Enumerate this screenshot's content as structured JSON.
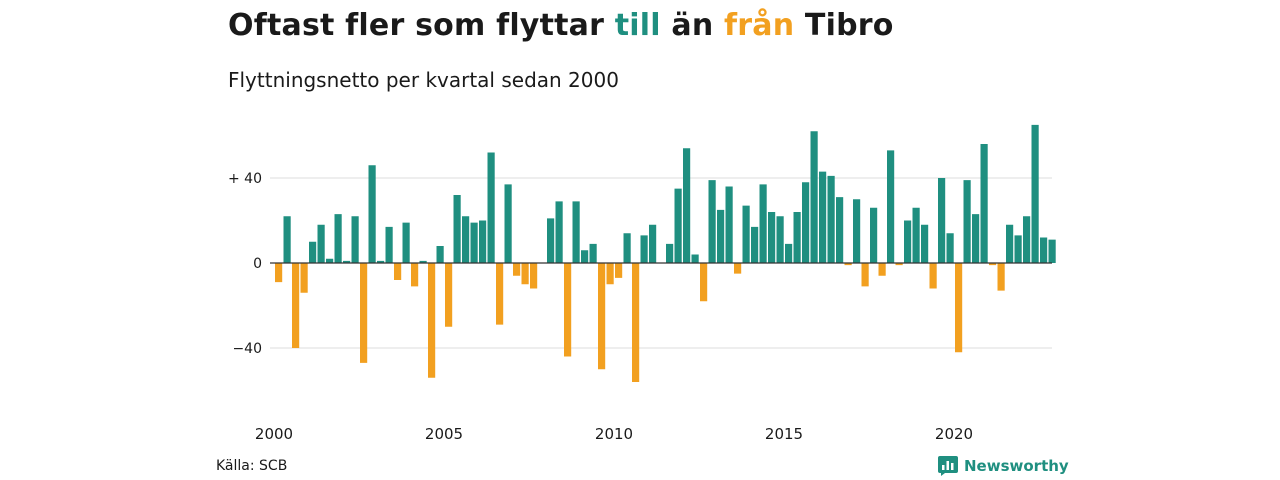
{
  "title": {
    "part1": "Oftast fler som flyttar ",
    "till": "till",
    "part2": " än ",
    "fran": "från",
    "part3": " Tibro"
  },
  "subtitle": "Flyttningsnetto per kvartal sedan 2000",
  "source": "Källa: SCB",
  "brand": "Newsworthy",
  "colors": {
    "positive": "#1f8f80",
    "negative": "#f2a020",
    "grid": "#dddddd",
    "axis": "#333333"
  },
  "chart_data": {
    "type": "bar",
    "x_start": "2000Q1",
    "ylim": [
      -56,
      65
    ],
    "yticks": [
      40,
      0,
      -40
    ],
    "ytick_labels": [
      "+ 40",
      "0",
      "−40"
    ],
    "xticks": [
      "2000",
      "2005",
      "2010",
      "2015",
      "2020"
    ],
    "values": [
      -9,
      22,
      -40,
      -14,
      10,
      18,
      2,
      23,
      1,
      22,
      -47,
      46,
      1,
      17,
      -8,
      19,
      -11,
      1,
      -54,
      8,
      -30,
      32,
      22,
      19,
      20,
      52,
      -29,
      37,
      -6,
      -10,
      -12,
      0,
      21,
      29,
      -44,
      29,
      6,
      9,
      -50,
      -10,
      -7,
      14,
      -56,
      13,
      18,
      0,
      9,
      35,
      54,
      4,
      -18,
      39,
      25,
      36,
      -5,
      27,
      17,
      37,
      24,
      22,
      9,
      24,
      38,
      62,
      43,
      41,
      31,
      -1,
      30,
      -11,
      26,
      -6,
      53,
      -1,
      20,
      26,
      18,
      -12,
      40,
      14,
      -42,
      39,
      23,
      56,
      -1,
      -13,
      18,
      13,
      22,
      65,
      12,
      11
    ]
  }
}
